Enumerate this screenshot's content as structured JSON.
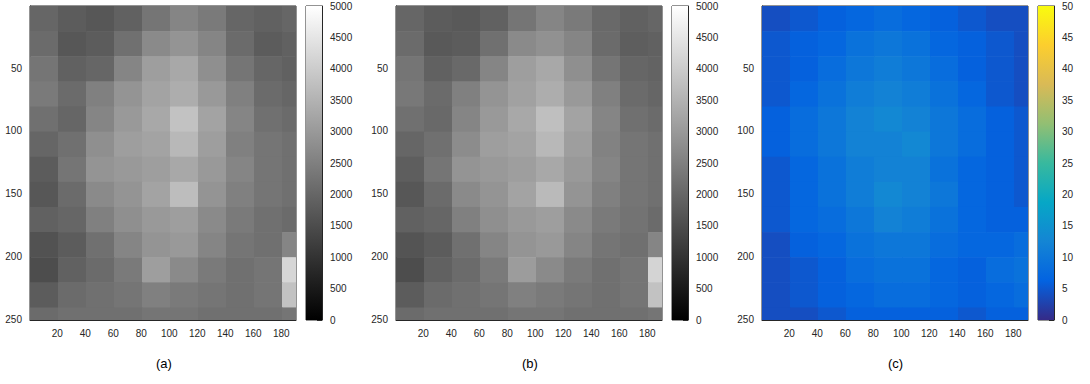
{
  "chart_data": [
    {
      "type": "heatmap",
      "title": "(a)",
      "grid": false,
      "xlim": [
        0.5,
        190.5
      ],
      "xticks": [
        20,
        40,
        60,
        80,
        100,
        120,
        140,
        160,
        180
      ],
      "ylim": [
        0.5,
        250.5
      ],
      "yticks": [
        50,
        100,
        150,
        200,
        250
      ],
      "x_bins": [
        0.5,
        20.5,
        40.5,
        60.5,
        80.5,
        100.5,
        120.5,
        140.5,
        160.5,
        180.5,
        190.5
      ],
      "y_bins": [
        0.5,
        20.5,
        40.5,
        60.5,
        80.5,
        100.5,
        120.5,
        140.5,
        160.5,
        180.5,
        200.5,
        220.5,
        240.5,
        250.5
      ],
      "cells": [
        [
          2000,
          1800,
          1700,
          1900,
          2300,
          2600,
          2400,
          2000,
          1900,
          2000
        ],
        [
          2100,
          1700,
          1800,
          2200,
          2700,
          2900,
          2600,
          2100,
          1800,
          1900
        ],
        [
          2300,
          1900,
          2000,
          2600,
          3100,
          3300,
          2800,
          2300,
          2000,
          1900
        ],
        [
          2400,
          2100,
          2500,
          2900,
          3200,
          3400,
          3000,
          2500,
          2100,
          2000
        ],
        [
          2200,
          2000,
          2600,
          3000,
          3300,
          3800,
          3200,
          2600,
          2200,
          2100
        ],
        [
          2000,
          2200,
          2800,
          3100,
          3200,
          3600,
          3100,
          2500,
          2300,
          2200
        ],
        [
          1800,
          2300,
          2900,
          3000,
          3100,
          3300,
          3000,
          2600,
          2300,
          2200
        ],
        [
          1700,
          2100,
          2700,
          2900,
          3200,
          3700,
          2900,
          2500,
          2300,
          2200
        ],
        [
          1900,
          2000,
          2500,
          2800,
          3000,
          3100,
          2700,
          2400,
          2200,
          2100
        ],
        [
          1600,
          1800,
          2200,
          2600,
          2900,
          3000,
          2600,
          2300,
          2200,
          2600
        ],
        [
          1500,
          1900,
          2100,
          2400,
          3100,
          2700,
          2400,
          2200,
          2300,
          4200
        ],
        [
          1800,
          2100,
          2200,
          2300,
          2500,
          2400,
          2300,
          2200,
          2300,
          3800
        ],
        [
          2100,
          2200,
          2200,
          2200,
          2300,
          2300,
          2200,
          2200,
          2200,
          2300
        ]
      ],
      "colorbar": {
        "range": [
          0,
          5000
        ],
        "ticks": [
          0,
          500,
          1000,
          1500,
          2000,
          2500,
          3000,
          3500,
          4000,
          4500,
          5000
        ],
        "color": "gray"
      }
    },
    {
      "type": "heatmap",
      "title": "(b)",
      "grid": false,
      "xlim": [
        0.5,
        190.5
      ],
      "xticks": [
        20,
        40,
        60,
        80,
        100,
        120,
        140,
        160,
        180
      ],
      "ylim": [
        0.5,
        250.5
      ],
      "yticks": [
        50,
        100,
        150,
        200,
        250
      ],
      "x_bins": [
        0.5,
        20.5,
        40.5,
        60.5,
        80.5,
        100.5,
        120.5,
        140.5,
        160.5,
        180.5,
        190.5
      ],
      "y_bins": [
        0.5,
        20.5,
        40.5,
        60.5,
        80.5,
        100.5,
        120.5,
        140.5,
        160.5,
        180.5,
        200.5,
        220.5,
        240.5,
        250.5
      ],
      "cells": [
        [
          2000,
          1800,
          1750,
          1900,
          2300,
          2600,
          2400,
          2050,
          1900,
          2000
        ],
        [
          2100,
          1750,
          1800,
          2200,
          2700,
          2850,
          2600,
          2100,
          1850,
          1900
        ],
        [
          2300,
          1900,
          2050,
          2600,
          3100,
          3300,
          2800,
          2300,
          2000,
          1950
        ],
        [
          2350,
          2100,
          2500,
          2900,
          3150,
          3400,
          3000,
          2500,
          2100,
          2000
        ],
        [
          2200,
          2050,
          2600,
          3000,
          3300,
          3750,
          3200,
          2600,
          2200,
          2100
        ],
        [
          2000,
          2200,
          2750,
          3100,
          3200,
          3600,
          3100,
          2550,
          2300,
          2200
        ],
        [
          1850,
          2300,
          2900,
          3000,
          3100,
          3300,
          3000,
          2600,
          2300,
          2200
        ],
        [
          1700,
          2100,
          2700,
          2900,
          3200,
          3650,
          2900,
          2500,
          2300,
          2200
        ],
        [
          1900,
          2000,
          2500,
          2800,
          3000,
          3100,
          2700,
          2400,
          2250,
          2100
        ],
        [
          1650,
          1800,
          2200,
          2600,
          2900,
          3000,
          2600,
          2300,
          2200,
          2600
        ],
        [
          1500,
          1900,
          2100,
          2400,
          3050,
          2700,
          2400,
          2200,
          2300,
          4150
        ],
        [
          1800,
          2100,
          2200,
          2300,
          2500,
          2400,
          2300,
          2200,
          2300,
          3800
        ],
        [
          2100,
          2200,
          2200,
          2200,
          2300,
          2300,
          2200,
          2200,
          2200,
          2300
        ]
      ],
      "colorbar": {
        "range": [
          0,
          5000
        ],
        "ticks": [
          0,
          500,
          1000,
          1500,
          2000,
          2500,
          3000,
          3500,
          4000,
          4500,
          5000
        ],
        "color": "gray"
      }
    },
    {
      "type": "heatmap",
      "title": "(c)",
      "grid": false,
      "xlim": [
        0.5,
        190.5
      ],
      "xticks": [
        20,
        40,
        60,
        80,
        100,
        120,
        140,
        160,
        180
      ],
      "ylim": [
        0.5,
        250.5
      ],
      "yticks": [
        50,
        100,
        150,
        200,
        250
      ],
      "x_bins": [
        0.5,
        20.5,
        40.5,
        60.5,
        80.5,
        100.5,
        120.5,
        140.5,
        160.5,
        180.5,
        190.5
      ],
      "y_bins": [
        0.5,
        20.5,
        40.5,
        60.5,
        80.5,
        100.5,
        120.5,
        140.5,
        160.5,
        180.5,
        200.5,
        220.5,
        240.5,
        250.5
      ],
      "cells": [
        [
          4,
          5,
          6,
          7,
          8,
          7,
          6,
          5,
          4,
          4
        ],
        [
          5,
          6,
          7,
          9,
          10,
          9,
          7,
          6,
          5,
          4
        ],
        [
          5,
          6,
          8,
          10,
          11,
          10,
          8,
          6,
          5,
          4
        ],
        [
          5,
          7,
          9,
          11,
          12,
          11,
          9,
          7,
          5,
          4
        ],
        [
          6,
          8,
          10,
          12,
          13,
          12,
          10,
          8,
          6,
          5
        ],
        [
          6,
          8,
          10,
          12,
          12,
          13,
          10,
          8,
          6,
          5
        ],
        [
          5,
          7,
          9,
          11,
          12,
          12,
          9,
          7,
          6,
          5
        ],
        [
          5,
          7,
          9,
          11,
          13,
          12,
          10,
          7,
          6,
          5
        ],
        [
          5,
          7,
          8,
          10,
          12,
          11,
          9,
          7,
          6,
          6
        ],
        [
          4,
          6,
          7,
          9,
          10,
          10,
          8,
          7,
          7,
          8
        ],
        [
          4,
          5,
          6,
          8,
          9,
          9,
          7,
          6,
          8,
          9
        ],
        [
          4,
          5,
          6,
          7,
          8,
          8,
          7,
          6,
          7,
          8
        ],
        [
          4,
          4,
          5,
          6,
          6,
          6,
          6,
          5,
          6,
          6
        ]
      ],
      "colorbar": {
        "range": [
          0,
          50
        ],
        "ticks": [
          0,
          5,
          10,
          15,
          20,
          25,
          30,
          35,
          40,
          45,
          50
        ],
        "color": "parula"
      }
    }
  ]
}
